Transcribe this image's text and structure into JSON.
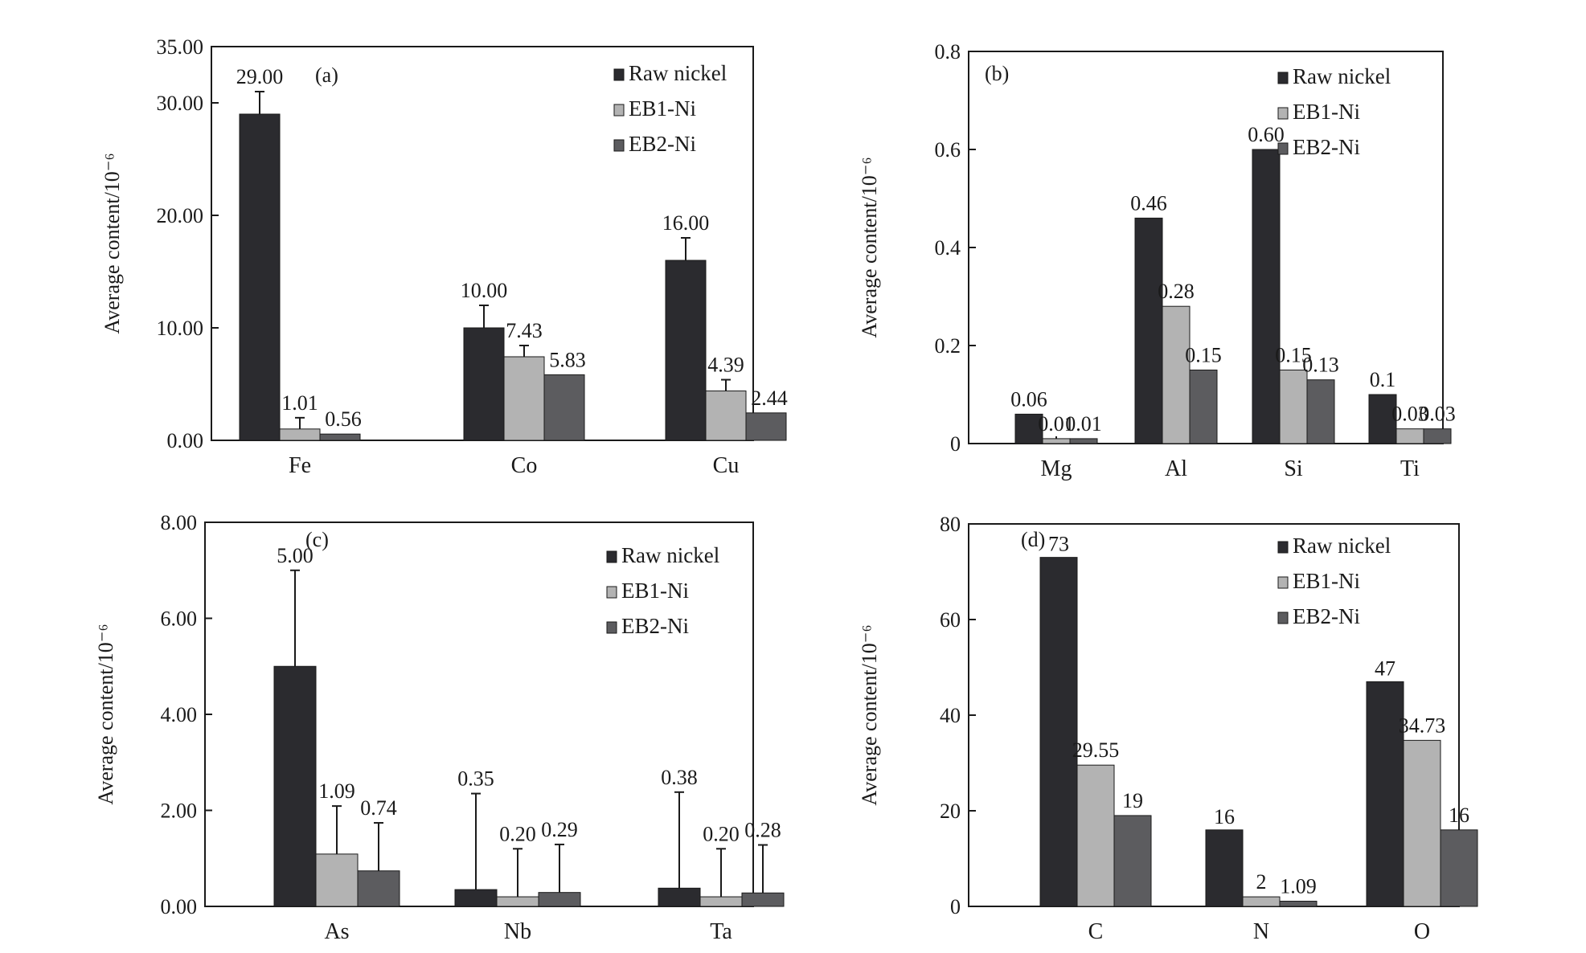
{
  "colors": {
    "raw_nickel": "#2b2b2f",
    "eb1_ni": "#b3b3b3",
    "eb2_ni": "#5c5c5f",
    "axis": "#1a1a1a"
  },
  "chart_data": [
    {
      "type": "bar",
      "panel_label": "(a)",
      "ylabel": "Average content/10⁻⁶",
      "xlabel": "",
      "ylim": [
        0,
        35
      ],
      "y_ticks": [
        "0.00",
        "10.00",
        "20.00",
        "30.00",
        "35.00"
      ],
      "y_tick_values": [
        0,
        10,
        20,
        30,
        35
      ],
      "categories": [
        "Fe",
        "Co",
        "Cu"
      ],
      "legend_position": "top-right",
      "series": [
        {
          "name": "Raw nickel",
          "values": [
            29.0,
            10.0,
            16.0
          ],
          "labels": [
            "29.00",
            "10.00",
            "16.00"
          ],
          "error": [
            2.0,
            2.0,
            2.0
          ]
        },
        {
          "name": "EB1-Ni",
          "values": [
            1.01,
            7.43,
            4.39
          ],
          "labels": [
            "1.01",
            "7.43",
            "4.39"
          ],
          "error": [
            1.0,
            1.0,
            1.0
          ]
        },
        {
          "name": "EB2-Ni",
          "values": [
            0.56,
            5.83,
            2.44
          ],
          "labels": [
            "0.56",
            "5.83",
            "2.44"
          ],
          "error": [
            0,
            0,
            0
          ]
        }
      ]
    },
    {
      "type": "bar",
      "panel_label": "(b)",
      "ylabel": "Average content/10⁻⁶",
      "xlabel": "",
      "ylim": [
        0,
        0.8
      ],
      "y_ticks": [
        "0",
        "0.2",
        "0.4",
        "0.6",
        "0.8"
      ],
      "y_tick_values": [
        0,
        0.2,
        0.4,
        0.6,
        0.8
      ],
      "categories": [
        "Mg",
        "Al",
        "Si",
        "Ti"
      ],
      "legend_position": "top-right",
      "series": [
        {
          "name": "Raw nickel",
          "values": [
            0.06,
            0.46,
            0.6,
            0.1
          ],
          "labels": [
            "0.06",
            "0.46",
            "0.60",
            "0.1"
          ],
          "error": [
            0,
            0,
            0,
            0
          ]
        },
        {
          "name": "EB1-Ni",
          "values": [
            0.01,
            0.28,
            0.15,
            0.03
          ],
          "labels": [
            "0.01",
            "0.28",
            "0.15",
            "0.03"
          ],
          "error": [
            0,
            0,
            0,
            0
          ]
        },
        {
          "name": "EB2-Ni",
          "values": [
            0.01,
            0.15,
            0.13,
            0.03
          ],
          "labels": [
            "0.01",
            "0.15",
            "0.13",
            "0.03"
          ],
          "error": [
            0,
            0,
            0,
            0
          ]
        }
      ]
    },
    {
      "type": "bar",
      "panel_label": "(c)",
      "ylabel": "Average content/10⁻⁶",
      "xlabel": "",
      "ylim": [
        0,
        8
      ],
      "y_ticks": [
        "0.00",
        "2.00",
        "4.00",
        "6.00",
        "8.00"
      ],
      "y_tick_values": [
        0,
        2,
        4,
        6,
        8
      ],
      "categories": [
        "As",
        "Nb",
        "Ta"
      ],
      "legend_position": "top-right",
      "series": [
        {
          "name": "Raw nickel",
          "values": [
            5.0,
            0.35,
            0.38
          ],
          "labels": [
            "5.00",
            "0.35",
            "0.38"
          ],
          "error": [
            2.0,
            2.0,
            2.0
          ]
        },
        {
          "name": "EB1-Ni",
          "values": [
            1.09,
            0.2,
            0.2
          ],
          "labels": [
            "1.09",
            "0.20",
            "0.20"
          ],
          "error": [
            1.0,
            1.0,
            1.0
          ]
        },
        {
          "name": "EB2-Ni",
          "values": [
            0.74,
            0.29,
            0.28
          ],
          "labels": [
            "0.74",
            "0.29",
            "0.28"
          ],
          "error": [
            1.0,
            1.0,
            1.0
          ]
        }
      ]
    },
    {
      "type": "bar",
      "panel_label": "(d)",
      "ylabel": "Average content/10⁻⁶",
      "xlabel": "",
      "ylim": [
        0,
        80
      ],
      "y_ticks": [
        "0",
        "20",
        "40",
        "60",
        "80"
      ],
      "y_tick_values": [
        0,
        20,
        40,
        60,
        80
      ],
      "categories": [
        "C",
        "N",
        "O"
      ],
      "legend_position": "top-right",
      "series": [
        {
          "name": "Raw nickel",
          "values": [
            73,
            16,
            47
          ],
          "labels": [
            "73",
            "16",
            "47"
          ],
          "error": [
            0,
            0,
            0
          ]
        },
        {
          "name": "EB1-Ni",
          "values": [
            29.55,
            2,
            34.73
          ],
          "labels": [
            "29.55",
            "2",
            "34.73"
          ],
          "error": [
            0,
            0,
            0
          ]
        },
        {
          "name": "EB2-Ni",
          "values": [
            19,
            1.09,
            16
          ],
          "labels": [
            "19",
            "1.09",
            "16"
          ],
          "error": [
            0,
            0,
            0
          ]
        }
      ]
    }
  ]
}
